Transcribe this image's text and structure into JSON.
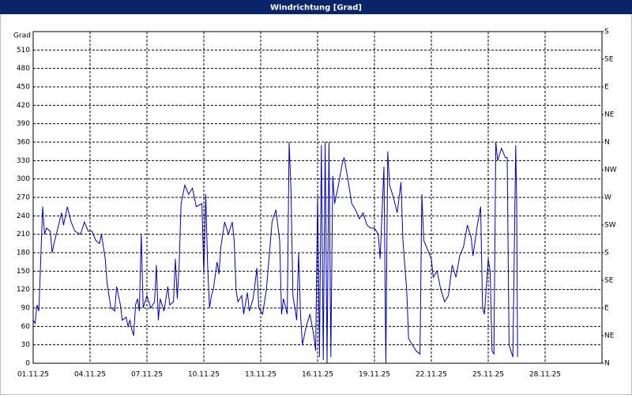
{
  "chart_data": {
    "type": "line",
    "title": "Windrichtung [Grad]",
    "y_label": "Grad",
    "x": [
      0,
      0.1,
      0.2,
      0.3,
      0.4,
      0.5,
      0.6,
      0.7,
      0.9,
      1.0,
      1.1,
      1.3,
      1.5,
      1.6,
      1.8,
      2.0,
      2.2,
      2.5,
      2.7,
      2.9,
      3.1,
      3.3,
      3.5,
      3.6,
      3.8,
      3.9,
      4.1,
      4.3,
      4.4,
      4.6,
      4.7,
      4.9,
      5.0,
      5.1,
      5.2,
      5.3,
      5.4,
      5.5,
      5.6,
      5.7,
      5.8,
      6.0,
      6.2,
      6.4,
      6.5,
      6.6,
      6.7,
      6.9,
      7.1,
      7.2,
      7.4,
      7.5,
      7.6,
      7.7,
      7.8,
      8.0,
      8.2,
      8.4,
      8.6,
      8.9,
      9.0,
      9.1,
      9.2,
      9.3,
      9.4,
      9.5,
      9.7,
      9.8,
      9.9,
      10.1,
      10.3,
      10.5,
      10.6,
      10.7,
      10.8,
      11.0,
      11.1,
      11.3,
      11.4,
      11.6,
      11.8,
      11.9,
      12.1,
      12.3,
      12.6,
      12.8,
      13.0,
      13.1,
      13.2,
      13.4,
      13.5,
      13.6,
      13.7,
      13.9,
      14.0,
      14.1,
      14.2,
      14.4,
      14.6,
      14.8,
      14.9,
      15.0,
      15.1,
      15.2,
      15.3,
      15.4,
      15.5,
      15.6,
      15.7,
      15.8,
      15.9,
      16.1,
      16.3,
      16.4,
      16.6,
      16.8,
      17.0,
      17.2,
      17.4,
      17.6,
      17.8,
      18.0,
      18.2,
      18.3,
      18.5,
      18.6,
      18.7,
      18.8,
      19.0,
      19.2,
      19.4,
      19.5,
      19.7,
      19.8,
      20.0,
      20.2,
      20.4,
      20.5,
      20.6,
      20.8,
      21.0,
      21.1,
      21.3,
      21.5,
      21.7,
      21.9,
      22.1,
      22.3,
      22.5,
      22.7,
      22.9,
      23.1,
      23.2,
      23.4,
      23.6,
      23.7,
      23.8,
      24.0,
      24.1,
      24.2,
      24.3,
      24.4,
      24.5,
      24.7,
      24.9,
      25.0,
      25.1,
      25.3,
      25.45,
      25.5,
      25.55
    ],
    "series": [
      {
        "color": "#0000c0",
        "values": [
          70,
          65,
          95,
          85,
          170,
          255,
          210,
          220,
          215,
          180,
          195,
          220,
          245,
          225,
          255,
          230,
          215,
          210,
          230,
          215,
          215,
          200,
          195,
          210,
          170,
          130,
          90,
          85,
          125,
          95,
          70,
          75,
          60,
          70,
          55,
          45,
          95,
          105,
          85,
          210,
          90,
          110,
          90,
          100,
          160,
          70,
          105,
          85,
          125,
          95,
          100,
          170,
          105,
          160,
          260,
          290,
          275,
          285,
          255,
          260,
          145,
          275,
          160,
          90,
          110,
          120,
          165,
          145,
          190,
          230,
          210,
          230,
          200,
          120,
          100,
          110,
          80,
          115,
          85,
          105,
          155,
          90,
          80,
          120,
          230,
          250,
          200,
          80,
          105,
          80,
          360,
          280,
          110,
          70,
          180,
          80,
          30,
          60,
          80,
          45,
          20,
          275,
          10,
          355,
          5,
          360,
          0,
          360,
          10,
          305,
          260,
          290,
          325,
          335,
          300,
          260,
          250,
          235,
          245,
          225,
          220,
          220,
          210,
          170,
          320,
          0,
          345,
          290,
          270,
          245,
          295,
          200,
          120,
          40,
          30,
          20,
          15,
          275,
          200,
          185,
          170,
          140,
          150,
          120,
          100,
          110,
          160,
          140,
          175,
          190,
          225,
          205,
          175,
          220,
          255,
          90,
          80,
          170,
          150,
          20,
          15,
          360,
          330,
          350,
          335,
          335,
          30,
          10,
          355,
          265,
          10
        ]
      }
    ],
    "xlim": [
      0,
      30
    ],
    "xticks": [
      {
        "value": 0,
        "label": "01.11.25"
      },
      {
        "value": 3,
        "label": "04.11.25"
      },
      {
        "value": 6,
        "label": "07.11.25"
      },
      {
        "value": 9,
        "label": "10.11.25"
      },
      {
        "value": 12,
        "label": "13.11.25"
      },
      {
        "value": 15,
        "label": "16.11.25"
      },
      {
        "value": 18,
        "label": "19.11.25"
      },
      {
        "value": 21,
        "label": "22.11.25"
      },
      {
        "value": 24,
        "label": "25.11.25"
      },
      {
        "value": 27,
        "label": "28.11.25"
      }
    ],
    "ylim": [
      0,
      540
    ],
    "yticks": [
      0,
      30,
      60,
      90,
      120,
      150,
      180,
      210,
      240,
      270,
      300,
      330,
      360,
      390,
      420,
      450,
      480,
      510
    ],
    "y2lim": [
      0,
      540
    ],
    "y2ticks": [
      {
        "value": 0,
        "label": "N"
      },
      {
        "value": 45,
        "label": "NE"
      },
      {
        "value": 90,
        "label": "E"
      },
      {
        "value": 135,
        "label": "SE"
      },
      {
        "value": 180,
        "label": "S"
      },
      {
        "value": 225,
        "label": "SW"
      },
      {
        "value": 270,
        "label": "W"
      },
      {
        "value": 315,
        "label": "NW"
      },
      {
        "value": 360,
        "label": "N"
      },
      {
        "value": 405,
        "label": "NE"
      },
      {
        "value": 450,
        "label": "E"
      },
      {
        "value": 495,
        "label": "SE"
      },
      {
        "value": 540,
        "label": "S"
      }
    ],
    "grid": true
  }
}
